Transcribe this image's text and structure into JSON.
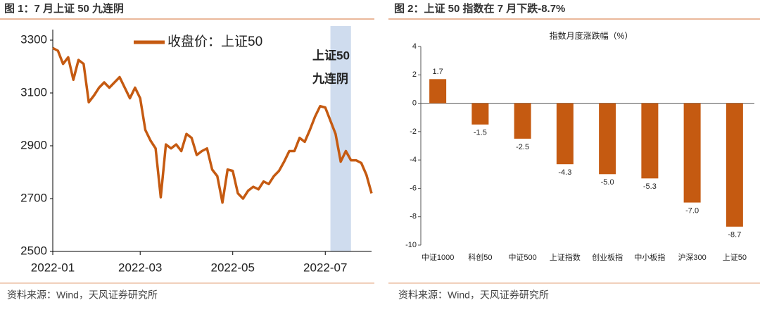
{
  "chart_data": [
    {
      "type": "line",
      "title": "图 1：7 月上证 50 九连阴",
      "source": "资料来源：Wind，天风证券研究所",
      "annotations": [
        "上证50",
        "九连阴"
      ],
      "shaded_span": {
        "start": 54,
        "end": 58
      },
      "categories": [
        "2022-01",
        null,
        null,
        null,
        null,
        null,
        null,
        null,
        null,
        null,
        null,
        null,
        null,
        null,
        null,
        null,
        null,
        "2022-03",
        null,
        null,
        null,
        null,
        null,
        null,
        null,
        null,
        null,
        null,
        null,
        null,
        null,
        null,
        null,
        null,
        null,
        "2022-05",
        null,
        null,
        null,
        null,
        null,
        null,
        null,
        null,
        null,
        null,
        null,
        null,
        null,
        null,
        null,
        null,
        null,
        "2022-07",
        null,
        null,
        null,
        null,
        null,
        null,
        null,
        null,
        null
      ],
      "series": [
        {
          "name": "收盘价：上证50",
          "color": "#c55a11",
          "values": [
            3270,
            3260,
            3210,
            3235,
            3150,
            3225,
            3210,
            3065,
            3090,
            3120,
            3140,
            3120,
            3140,
            3160,
            3120,
            3080,
            3120,
            3080,
            2960,
            2920,
            2890,
            2705,
            2905,
            2890,
            2905,
            2880,
            2945,
            2930,
            2865,
            2880,
            2890,
            2810,
            2785,
            2685,
            2810,
            2805,
            2720,
            2700,
            2730,
            2745,
            2735,
            2765,
            2755,
            2785,
            2805,
            2840,
            2880,
            2880,
            2930,
            2915,
            2960,
            3010,
            3050,
            3045,
            2995,
            2945,
            2840,
            2880,
            2845,
            2845,
            2835,
            2790,
            2720
          ]
        }
      ],
      "ylim": [
        2500,
        3300
      ],
      "yticks": [
        2500,
        2700,
        2900,
        3100,
        3300
      ],
      "grid": false
    },
    {
      "type": "bar",
      "title": "图 2：上证 50 指数在 7 月下跌-8.7%",
      "subtitle": "指数月度涨跌幅（%）",
      "source": "资料来源：Wind，天风证券研究所",
      "categories": [
        "中证1000",
        "科创50",
        "中证500",
        "上证指数",
        "创业板指",
        "中小板指",
        "沪深300",
        "上证50"
      ],
      "values": [
        1.7,
        -1.5,
        -2.5,
        -4.3,
        -5,
        -5.3,
        -7,
        -8.7
      ],
      "value_labels": [
        "1.7",
        "-1.5",
        "-2.5",
        "-4.3",
        "-5.0",
        "-5.3",
        "-7.0",
        "-8.7"
      ],
      "color": "#c55a11",
      "ylim": [
        -10,
        4
      ],
      "yticks": [
        4,
        2,
        0,
        -2,
        -4,
        -6,
        -8,
        -10
      ],
      "grid": false
    }
  ]
}
